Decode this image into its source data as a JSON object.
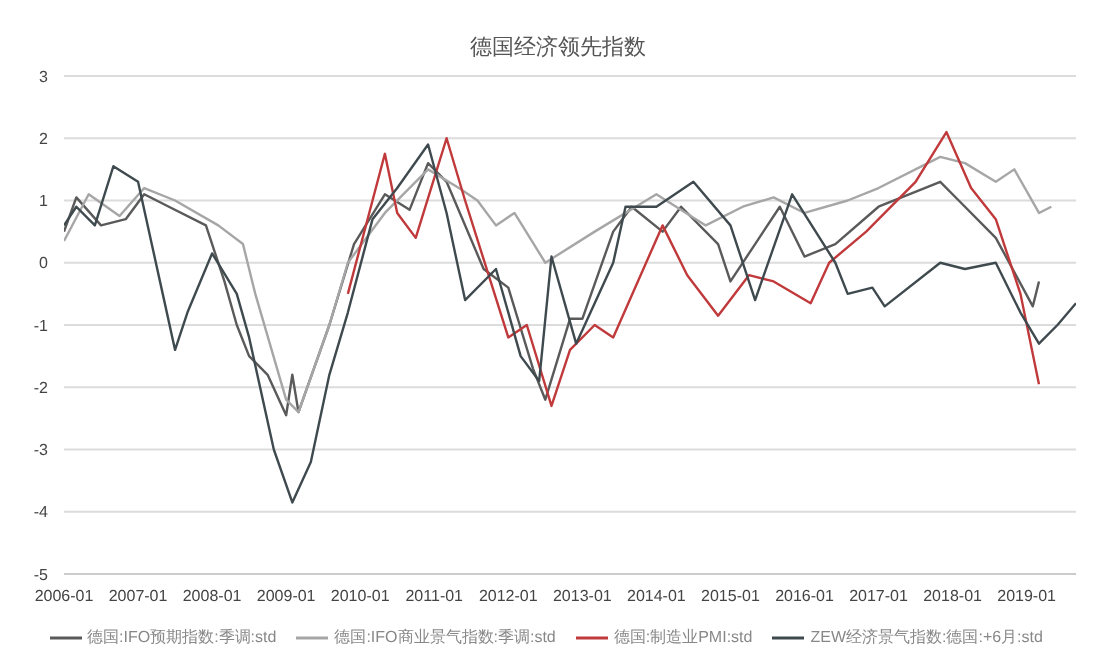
{
  "chart_data": {
    "type": "line",
    "title": "德国经济领先指数",
    "xlim": [
      "2006-01",
      "2019-09"
    ],
    "xticks": [
      "2006-01",
      "2007-01",
      "2008-01",
      "2009-01",
      "2010-01",
      "2011-01",
      "2012-01",
      "2013-01",
      "2014-01",
      "2015-01",
      "2016-01",
      "2017-01",
      "2018-01",
      "2019-01"
    ],
    "ylim": [
      -5,
      3
    ],
    "yticks": [
      -5,
      -4,
      -3,
      -2,
      -1,
      0,
      1,
      2,
      3
    ],
    "grid": "y",
    "legend": "bottom",
    "marker": "none",
    "line_style": "solid",
    "series": [
      {
        "name": "德国:IFO预期指数:季调:std",
        "color": "#5a5a5a",
        "x": [
          "2006-01",
          "2006-03",
          "2006-07",
          "2006-11",
          "2007-02",
          "2007-06",
          "2007-12",
          "2008-03",
          "2008-05",
          "2008-07",
          "2008-10",
          "2009-01",
          "2009-02",
          "2009-03",
          "2009-08",
          "2009-12",
          "2010-05",
          "2010-09",
          "2010-12",
          "2011-03",
          "2011-09",
          "2012-01",
          "2012-05",
          "2012-07",
          "2012-11",
          "2013-01",
          "2013-06",
          "2013-09",
          "2014-02",
          "2014-05",
          "2014-11",
          "2015-01",
          "2015-05",
          "2015-09",
          "2016-01",
          "2016-06",
          "2017-01",
          "2017-11",
          "2018-02",
          "2018-08",
          "2019-02",
          "2019-03"
        ],
        "values": [
          0.5,
          1.05,
          0.6,
          0.7,
          1.1,
          0.9,
          0.6,
          -0.3,
          -1.0,
          -1.5,
          -1.8,
          -2.45,
          -1.8,
          -2.4,
          -1.0,
          0.3,
          1.1,
          0.85,
          1.6,
          1.3,
          -0.1,
          -0.4,
          -1.7,
          -2.2,
          -0.9,
          -0.9,
          0.5,
          0.9,
          0.5,
          0.9,
          0.3,
          -0.3,
          0.3,
          0.9,
          0.1,
          0.3,
          0.9,
          1.3,
          1.0,
          0.4,
          -0.7,
          -0.3
        ]
      },
      {
        "name": "德国:IFO商业景气指数:季调:std",
        "color": "#a6a6a6",
        "x": [
          "2006-01",
          "2006-05",
          "2006-10",
          "2007-02",
          "2007-07",
          "2008-02",
          "2008-06",
          "2008-08",
          "2009-01",
          "2009-03",
          "2009-08",
          "2009-11",
          "2010-05",
          "2010-12",
          "2011-05",
          "2011-08",
          "2011-11",
          "2012-02",
          "2012-07",
          "2013-03",
          "2014-01",
          "2014-09",
          "2015-03",
          "2015-08",
          "2016-01",
          "2016-08",
          "2017-01",
          "2017-11",
          "2018-03",
          "2018-08",
          "2018-11",
          "2019-03",
          "2019-05"
        ],
        "values": [
          0.35,
          1.1,
          0.75,
          1.2,
          1.0,
          0.6,
          0.3,
          -0.5,
          -2.2,
          -2.4,
          -1.0,
          0.0,
          0.8,
          1.5,
          1.2,
          1.0,
          0.6,
          0.8,
          0.0,
          0.5,
          1.1,
          0.6,
          0.9,
          1.05,
          0.8,
          1.0,
          1.2,
          1.7,
          1.6,
          1.3,
          1.5,
          0.8,
          0.9
        ]
      },
      {
        "name": "德国:制造业PMI:std",
        "color": "#c0393b",
        "x": [
          "2009-11",
          "2010-05",
          "2010-07",
          "2010-10",
          "2011-03",
          "2011-06",
          "2012-01",
          "2012-04",
          "2012-08",
          "2012-11",
          "2013-03",
          "2013-06",
          "2014-02",
          "2014-06",
          "2014-11",
          "2015-04",
          "2015-08",
          "2016-02",
          "2016-05",
          "2016-11",
          "2017-07",
          "2017-12",
          "2018-04",
          "2018-08",
          "2018-12",
          "2019-03"
        ],
        "values": [
          -0.5,
          1.75,
          0.8,
          0.4,
          2.0,
          1.0,
          -1.2,
          -1.0,
          -2.3,
          -1.4,
          -1.0,
          -1.2,
          0.6,
          -0.2,
          -0.85,
          -0.2,
          -0.3,
          -0.65,
          0.0,
          0.5,
          1.3,
          2.1,
          1.2,
          0.7,
          -0.5,
          -1.95
        ]
      },
      {
        "name": "ZEW经济景气指数:德国:+6月:std",
        "color": "#3f4a4f",
        "x": [
          "2006-01",
          "2006-03",
          "2006-06",
          "2006-09",
          "2007-01",
          "2007-05",
          "2007-07",
          "2007-09",
          "2008-01",
          "2008-05",
          "2008-07",
          "2008-11",
          "2009-02",
          "2009-05",
          "2009-08",
          "2009-11",
          "2010-03",
          "2010-07",
          "2010-12",
          "2011-03",
          "2011-06",
          "2011-11",
          "2012-03",
          "2012-06",
          "2012-08",
          "2012-12",
          "2013-06",
          "2013-08",
          "2014-01",
          "2014-07",
          "2015-01",
          "2015-05",
          "2015-11",
          "2016-06",
          "2016-08",
          "2016-12",
          "2017-02",
          "2017-11",
          "2018-03",
          "2018-08",
          "2018-12",
          "2019-03",
          "2019-06",
          "2019-09"
        ],
        "values": [
          0.6,
          0.9,
          0.6,
          1.55,
          1.3,
          -0.5,
          -1.4,
          -0.8,
          0.15,
          -0.5,
          -1.2,
          -3.0,
          -3.85,
          -3.2,
          -1.8,
          -0.8,
          0.7,
          1.2,
          1.9,
          0.8,
          -0.6,
          -0.1,
          -1.5,
          -1.9,
          0.1,
          -1.3,
          0.0,
          0.9,
          0.9,
          1.3,
          0.6,
          -0.6,
          1.1,
          0.0,
          -0.5,
          -0.4,
          -0.7,
          0.0,
          -0.1,
          0.0,
          -0.8,
          -1.3,
          -1.0,
          -0.65
        ]
      }
    ]
  }
}
